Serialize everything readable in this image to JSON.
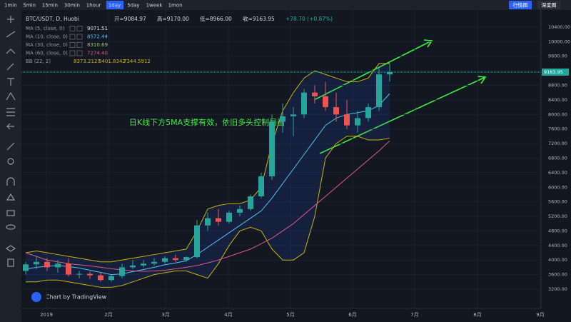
{
  "toolbar": {
    "intervals": [
      "1min",
      "5min",
      "15min",
      "30min",
      "1hour",
      "1day",
      "5day",
      "1week",
      "1mon"
    ],
    "active": "1day",
    "buttons": [
      "行情图",
      "深度图"
    ]
  },
  "chart_data": {
    "type": "candlestick",
    "title": "BTC/USDT, D, Huobi",
    "quote": [
      "开=9084.97",
      "高=9170.00",
      "低=8966.00",
      "收=9163.95",
      "+78.70 (+0.87%)"
    ],
    "indicators": [
      {
        "name": "MA (5, close, 0)",
        "value": "9071.51",
        "color": "#e8e8e8"
      },
      {
        "name": "MA (10, close, 0)",
        "value": "8572.44",
        "color": "#4fc3f7",
        "values": [
          3750,
          3800,
          3830,
          3850,
          3820,
          3780,
          3720,
          3660,
          3600,
          3620,
          3680,
          3740,
          3800,
          3870,
          3920,
          3980,
          4150,
          4350,
          4550,
          4750,
          4950,
          5150,
          5350,
          5700,
          6100,
          6500,
          6900,
          7300,
          7700,
          7900,
          8000,
          8050,
          8100,
          8250,
          8572
        ]
      },
      {
        "name": "MA (30, close, 0)",
        "value": "8310.69",
        "color": "#9ccc65"
      },
      {
        "name": "MA (60, close, 0)",
        "value": "7274.40",
        "color": "#e05a8a",
        "values": [
          4200,
          4100,
          4000,
          3950,
          3900,
          3870,
          3840,
          3800,
          3760,
          3730,
          3700,
          3690,
          3700,
          3720,
          3760,
          3800,
          3850,
          3920,
          4000,
          4100,
          4200,
          4300,
          4450,
          4600,
          4800,
          5000,
          5250,
          5500,
          5750,
          6000,
          6250,
          6500,
          6750,
          7000,
          7274
        ]
      }
    ],
    "bb": {
      "name": "BB (22, 2)",
      "labels": [
        "8373.2127",
        "9401.8342",
        "7344.5912"
      ],
      "color": "#c8b400",
      "upper": [
        4200,
        4250,
        4200,
        4150,
        4100,
        4050,
        4000,
        3950,
        3950,
        4000,
        4050,
        4100,
        4150,
        4200,
        4250,
        4300,
        4800,
        5400,
        5500,
        5550,
        5550,
        5650,
        6000,
        7200,
        8100,
        8600,
        9000,
        9200,
        9100,
        9000,
        8900,
        8900,
        9000,
        9400,
        9402
      ],
      "lower": [
        3400,
        3400,
        3450,
        3450,
        3400,
        3350,
        3300,
        3250,
        3250,
        3300,
        3400,
        3500,
        3600,
        3650,
        3700,
        3700,
        3600,
        3500,
        3900,
        4400,
        4800,
        4900,
        4800,
        4300,
        4000,
        4000,
        4200,
        5200,
        6800,
        7200,
        7400,
        7400,
        7300,
        7300,
        7345
      ]
    },
    "open": [
      3700,
      3880,
      3950,
      3800,
      3900,
      3600,
      3620,
      3580,
      3450,
      3560,
      3800,
      3850,
      3900,
      3950,
      4050,
      4000,
      4080,
      4950,
      5150,
      5050,
      5300,
      5400,
      5750,
      6300,
      7800,
      7950,
      8000,
      8600,
      8500,
      8200,
      8000,
      7700,
      7900,
      8200,
      9100
    ],
    "high": [
      3950,
      4100,
      4050,
      4000,
      4050,
      3700,
      3680,
      3650,
      3600,
      3900,
      4000,
      4000,
      4050,
      4100,
      4150,
      4100,
      5100,
      5300,
      5400,
      5350,
      5500,
      5800,
      6400,
      8000,
      8300,
      8200,
      8700,
      8800,
      8900,
      8600,
      8400,
      8100,
      8300,
      9300,
      9400
    ],
    "low": [
      3600,
      3750,
      3700,
      3650,
      3550,
      3500,
      3480,
      3400,
      3400,
      3500,
      3750,
      3800,
      3850,
      3900,
      3950,
      3950,
      4050,
      4800,
      4950,
      5000,
      5200,
      5350,
      5700,
      6200,
      7500,
      7400,
      7900,
      8300,
      8100,
      7800,
      7600,
      7500,
      7800,
      8100,
      8900
    ],
    "close": [
      3880,
      3950,
      3800,
      3900,
      3600,
      3620,
      3580,
      3450,
      3560,
      3800,
      3850,
      3900,
      3950,
      4050,
      4000,
      4080,
      4950,
      5150,
      5050,
      5300,
      5400,
      5750,
      6300,
      7800,
      7950,
      8000,
      8600,
      8500,
      8200,
      8000,
      7700,
      7900,
      8200,
      9100,
      9164
    ],
    "up_color": "#26a69a",
    "down_color": "#ef5350",
    "xlabels": [
      "2019",
      "2月",
      "3月",
      "4月",
      "5月",
      "6月",
      "7月",
      "8月",
      "9月"
    ],
    "ylim": [
      2670,
      10870
    ],
    "yticks": [
      {
        "value": 3200,
        "label": "3200.00"
      },
      {
        "value": 3600,
        "label": "3600.00"
      },
      {
        "value": 4000,
        "label": "4000.00"
      },
      {
        "value": 4400,
        "label": "4400.00"
      },
      {
        "value": 4800,
        "label": "4800.00"
      },
      {
        "value": 5200,
        "label": "5200.00"
      },
      {
        "value": 5600,
        "label": "5600.00"
      },
      {
        "value": 6000,
        "label": "6000.00"
      },
      {
        "value": 6400,
        "label": "6400.00"
      },
      {
        "value": 6800,
        "label": "6800.00"
      },
      {
        "value": 7200,
        "label": "7200.00"
      },
      {
        "value": 7600,
        "label": "7600.00"
      },
      {
        "value": 8000,
        "label": "8000.00"
      },
      {
        "value": 8400,
        "label": "8400.00"
      },
      {
        "value": 8800,
        "label": "8800.00"
      },
      {
        "value": 9200,
        "label": "9200.00"
      },
      {
        "value": 9600,
        "label": "9600.00"
      },
      {
        "value": 10000,
        "label": "10000.00"
      },
      {
        "value": 10400,
        "label": "10400.00"
      }
    ],
    "last_price": {
      "value": 9163.95,
      "label": "9163.95"
    },
    "annotation": "日K线下方5MA支撑有效，依旧多头控制局面",
    "watermark": "Chart by TradingView"
  }
}
